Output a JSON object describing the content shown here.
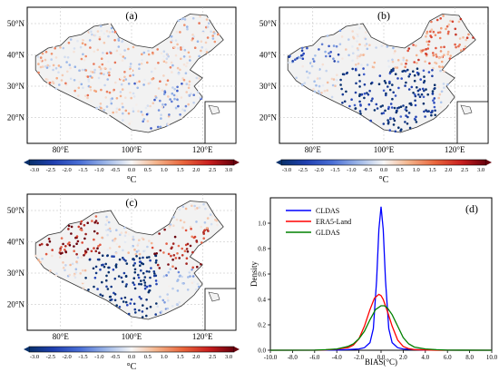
{
  "panels": [
    {
      "label": "(a)",
      "lat_labels": [
        "50°N",
        "40°N",
        "30°N",
        "20°N"
      ],
      "lon_labels": [
        "80°E",
        "100°E",
        "120°E"
      ],
      "unit": "°C",
      "colorbar_ticks": [
        "-3.0",
        "-2.5",
        "-2.0",
        "-1.5",
        "-1.0",
        "-0.5",
        "0.0",
        "0.5",
        "1.0",
        "1.5",
        "2.0",
        "2.5",
        "3.0"
      ]
    },
    {
      "label": "(b)",
      "lat_labels": [
        "50°N",
        "40°N",
        "30°N",
        "20°N"
      ],
      "lon_labels": [
        "80°E",
        "100°E",
        "120°E"
      ],
      "unit": "°C",
      "colorbar_ticks": [
        "-3.0",
        "-2.5",
        "-2.0",
        "-1.5",
        "-1.0",
        "-0.5",
        "0.0",
        "0.5",
        "1.0",
        "1.5",
        "2.0",
        "2.5",
        "3.0"
      ]
    },
    {
      "label": "(c)",
      "lat_labels": [
        "50°N",
        "40°N",
        "30°N",
        "20°N"
      ],
      "lon_labels": [
        "80°E",
        "100°E",
        "120°E"
      ],
      "unit": "°C",
      "colorbar_ticks": [
        "-3.0",
        "-2.5",
        "-2.0",
        "-1.5",
        "-1.0",
        "-0.5",
        "0.0",
        "0.5",
        "1.0",
        "1.5",
        "2.0",
        "2.5",
        "3.0"
      ]
    }
  ],
  "colors": {
    "cold": "#08306b",
    "mid": "#f7f7f7",
    "warm": "#67000d",
    "blue_line": "#0000ff",
    "red_line": "#ff0000",
    "green_line": "#008000"
  },
  "chart_data": {
    "type": "line",
    "panel_label": "(d)",
    "xlabel": "BIAS(°C)",
    "ylabel": "Density",
    "xlim": [
      -10.0,
      10.0
    ],
    "ylim": [
      0,
      1.2
    ],
    "x_ticks": [
      "-10.0",
      "-8.0",
      "-6.0",
      "-4.0",
      "-2.0",
      "0.0",
      "2.0",
      "4.0",
      "6.0",
      "8.0",
      "10.0"
    ],
    "y_ticks": [
      "0.0",
      "0.2",
      "0.4",
      "0.6",
      "0.8",
      "1.0"
    ],
    "legend_position": "top-left",
    "series": [
      {
        "name": "CLDAS",
        "color": "#0000ff",
        "x": [
          -10,
          -6,
          -4,
          -3,
          -2,
          -1.5,
          -1,
          -0.7,
          -0.4,
          -0.2,
          0,
          0.2,
          0.4,
          0.7,
          1,
          1.5,
          2,
          3,
          4,
          6,
          10
        ],
        "y": [
          0,
          0,
          0.002,
          0.005,
          0.01,
          0.02,
          0.06,
          0.17,
          0.55,
          0.95,
          1.13,
          0.95,
          0.55,
          0.17,
          0.06,
          0.02,
          0.01,
          0.005,
          0.002,
          0,
          0
        ]
      },
      {
        "name": "ERA5-Land",
        "color": "#ff0000",
        "x": [
          -10,
          -6,
          -5,
          -4,
          -3,
          -2.5,
          -2,
          -1.5,
          -1,
          -0.6,
          -0.2,
          0,
          0.2,
          0.6,
          1,
          1.5,
          2,
          2.5,
          3,
          4,
          5,
          10
        ],
        "y": [
          0,
          0,
          0.003,
          0.008,
          0.02,
          0.04,
          0.09,
          0.19,
          0.32,
          0.41,
          0.44,
          0.43,
          0.4,
          0.3,
          0.19,
          0.08,
          0.03,
          0.012,
          0.005,
          0.002,
          0,
          0
        ]
      },
      {
        "name": "GLDAS",
        "color": "#008000",
        "x": [
          -10,
          -6,
          -5,
          -4,
          -3,
          -2.5,
          -2,
          -1.5,
          -1,
          -0.5,
          0,
          0.3,
          0.6,
          1,
          1.5,
          2,
          2.5,
          3,
          4,
          5,
          6,
          10
        ],
        "y": [
          0,
          0.001,
          0.004,
          0.01,
          0.03,
          0.05,
          0.09,
          0.15,
          0.24,
          0.32,
          0.35,
          0.35,
          0.33,
          0.28,
          0.19,
          0.1,
          0.05,
          0.025,
          0.01,
          0.004,
          0.001,
          0
        ]
      }
    ]
  }
}
